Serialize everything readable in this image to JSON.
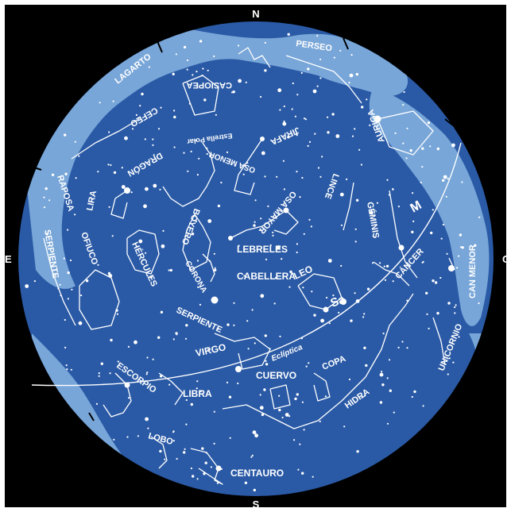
{
  "colors": {
    "background": "#000000",
    "sky": "#2a5aa6",
    "milky_way": "#78a6d8",
    "stars": "#ffffff",
    "lines": "#ffffff"
  },
  "directions": {
    "north": "N",
    "south": "S",
    "east": "E",
    "west": "O"
  },
  "ecliptic_label": "Eclíptica",
  "planets": {
    "moon": "M",
    "saturn": "Sa"
  },
  "constellations": [
    {
      "id": "perseo",
      "label": "PERSEO"
    },
    {
      "id": "lagarto",
      "label": "LAGARTO"
    },
    {
      "id": "casiopea",
      "label": "CASIOPEA"
    },
    {
      "id": "cefeo",
      "label": "CEFEO"
    },
    {
      "id": "estrella-polar",
      "label": "Estrella Polar"
    },
    {
      "id": "jirafa",
      "label": "JIRAFA"
    },
    {
      "id": "auriga",
      "label": "AURIGA"
    },
    {
      "id": "dragon",
      "label": "DRAGÓN"
    },
    {
      "id": "osa-menor",
      "label": "OSA MENOR"
    },
    {
      "id": "lince",
      "label": "LINCE"
    },
    {
      "id": "raposa",
      "label": "RAPOSA"
    },
    {
      "id": "lira",
      "label": "LIRA"
    },
    {
      "id": "boyero",
      "label": "BOYERO"
    },
    {
      "id": "osa-mayor",
      "label": "OSA MAYOR"
    },
    {
      "id": "geminis",
      "label": "GÉMINIS"
    },
    {
      "id": "serpiente-e",
      "label": "SERPIENTE"
    },
    {
      "id": "ofiuco",
      "label": "OFIUCO"
    },
    {
      "id": "hercules",
      "label": "HÉRCULES"
    },
    {
      "id": "lebreles",
      "label": "LEBRELES"
    },
    {
      "id": "cabellera",
      "label": "CABELLERA"
    },
    {
      "id": "corona",
      "label": "CORONA"
    },
    {
      "id": "leo",
      "label": "LEO"
    },
    {
      "id": "cancer",
      "label": "CÁNCER"
    },
    {
      "id": "can-menor",
      "label": "CAN MENOR"
    },
    {
      "id": "serpiente-s",
      "label": "SERPIENTE"
    },
    {
      "id": "virgo",
      "label": "VIRGO"
    },
    {
      "id": "unicornio",
      "label": "UNICORNIO"
    },
    {
      "id": "escorpio",
      "label": "ESCORPIO"
    },
    {
      "id": "libra",
      "label": "LIBRA"
    },
    {
      "id": "cuervo",
      "label": "CUERVO"
    },
    {
      "id": "copa",
      "label": "COPA"
    },
    {
      "id": "hidra",
      "label": "HIDRA"
    },
    {
      "id": "lobo",
      "label": "LOBO"
    },
    {
      "id": "centauro",
      "label": "CENTAURO"
    }
  ]
}
